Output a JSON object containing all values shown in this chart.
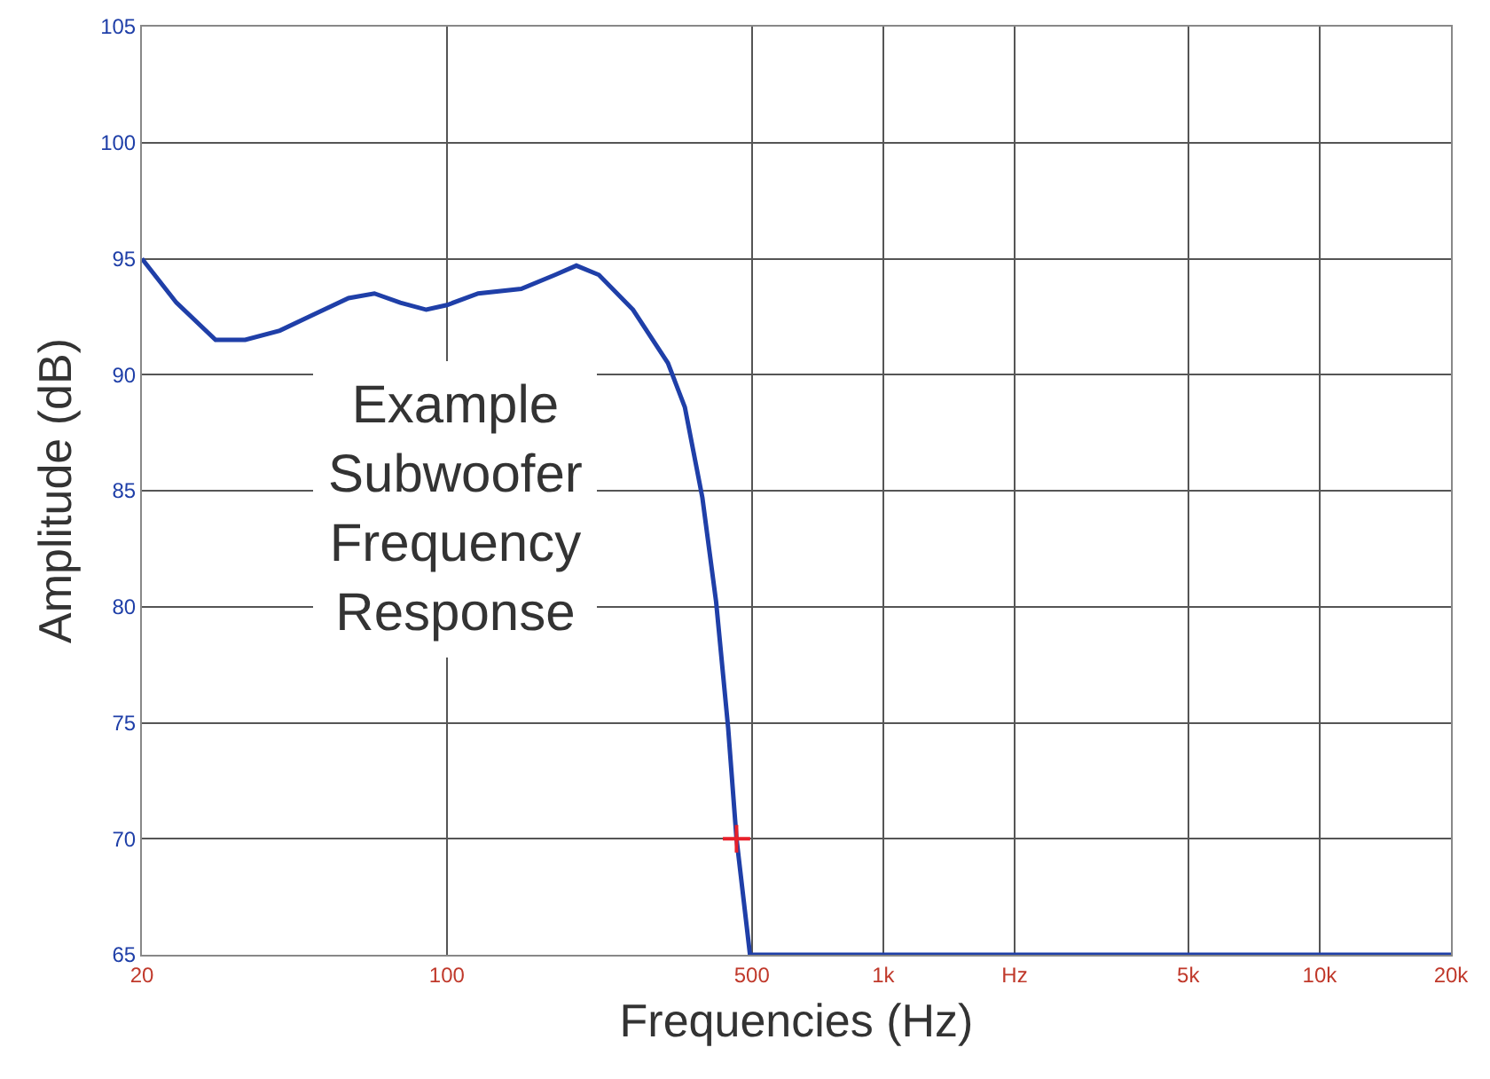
{
  "chart_data": {
    "type": "line",
    "xlabel": "Frequencies (Hz)",
    "ylabel": "Amplitude (dB)",
    "log": "x",
    "xlim": [
      20,
      20000
    ],
    "ylim": [
      65,
      105
    ],
    "xticks": [
      20,
      100,
      500,
      {
        "value": 1000,
        "label": "1k"
      },
      {
        "value": 2000,
        "label": "Hz"
      },
      {
        "value": 5000,
        "label": "5k"
      },
      {
        "value": 10000,
        "label": "10k"
      },
      {
        "value": 20000,
        "label": "20k"
      }
    ],
    "yticks": [
      65,
      70,
      75,
      80,
      85,
      90,
      95,
      100,
      105
    ],
    "grid": true,
    "marker": "none",
    "line_style": "solid",
    "annotations": [
      "Example Subwoofer Frequency Response"
    ],
    "series": [
      {
        "color": "#1f3fa8",
        "x": [
          20,
          24,
          29.5,
          34.5,
          41.4,
          49.6,
          59.5,
          68.2,
          78.2,
          89.7,
          100,
          118,
          148,
          177,
          198,
          223,
          267,
          321,
          351,
          385,
          414,
          441,
          461,
          495,
          20000
        ],
        "values": [
          95.0,
          93.1,
          91.5,
          91.5,
          91.9,
          92.6,
          93.3,
          93.5,
          93.1,
          92.8,
          93.0,
          93.5,
          93.7,
          94.3,
          94.7,
          94.3,
          92.8,
          90.5,
          88.6,
          84.7,
          80.2,
          74.8,
          70.0,
          65,
          65
        ]
      },
      {
        "type": "scatter",
        "marker": "cross",
        "color": "#e8202a",
        "x": [
          461
        ],
        "values": [
          70
        ]
      }
    ]
  }
}
